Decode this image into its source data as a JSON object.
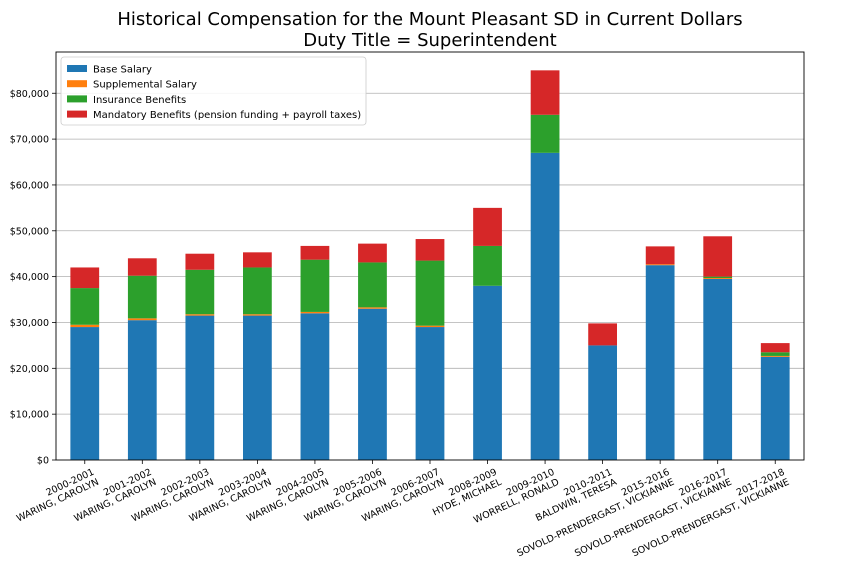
{
  "chart_data": {
    "type": "bar",
    "stacked": true,
    "title": "Historical Compensation for the Mount Pleasant SD in Current Dollars",
    "subtitle": "Duty Title = Superintendent",
    "xlabel": "",
    "ylabel": "",
    "ylim": [
      0,
      89000
    ],
    "yticks": [
      0,
      10000,
      20000,
      30000,
      40000,
      50000,
      60000,
      70000,
      80000
    ],
    "ytick_labels": [
      "$0",
      "$10,000",
      "$20,000",
      "$30,000",
      "$40,000",
      "$50,000",
      "$60,000",
      "$70,000",
      "$80,000"
    ],
    "grid": "horizontal",
    "legend_position": "top-left",
    "categories": [
      [
        "2000-2001",
        "WARING, CAROLYN"
      ],
      [
        "2001-2002",
        "WARING, CAROLYN"
      ],
      [
        "2002-2003",
        "WARING, CAROLYN"
      ],
      [
        "2003-2004",
        "WARING, CAROLYN"
      ],
      [
        "2004-2005",
        "WARING, CAROLYN"
      ],
      [
        "2005-2006",
        "WARING, CAROLYN"
      ],
      [
        "2006-2007",
        "WARING, CAROLYN"
      ],
      [
        "2008-2009",
        "HYDE, MICHAEL"
      ],
      [
        "2009-2010",
        "WORRELL, RONALD"
      ],
      [
        "2010-2011",
        "BALDWIN, TERESA"
      ],
      [
        "2015-2016",
        "SOVOLD-PRENDERGAST, VICKIANNE"
      ],
      [
        "2016-2017",
        "SOVOLD-PRENDERGAST, VICKIANNE"
      ],
      [
        "2017-2018",
        "SOVOLD-PRENDERGAST, VICKIANNE"
      ]
    ],
    "series": [
      {
        "name": "Base Salary",
        "color": "#1f77b4",
        "values": [
          29000,
          30500,
          31500,
          31500,
          32000,
          33000,
          29000,
          38000,
          67000,
          25000,
          42500,
          39500,
          22500
        ]
      },
      {
        "name": "Supplemental Salary",
        "color": "#ff7f0e",
        "values": [
          500,
          400,
          300,
          300,
          300,
          300,
          300,
          0,
          0,
          0,
          200,
          200,
          200
        ]
      },
      {
        "name": "Insurance Benefits",
        "color": "#2ca02c",
        "values": [
          8000,
          9300,
          9700,
          10200,
          11400,
          9800,
          14200,
          8700,
          8300,
          0,
          0,
          300,
          800
        ]
      },
      {
        "name": "Mandatory Benefits (pension funding + payroll taxes)",
        "color": "#d62728",
        "values": [
          4500,
          3800,
          3500,
          3300,
          3000,
          4100,
          4700,
          8300,
          9700,
          4800,
          3900,
          8800,
          2000
        ]
      }
    ]
  }
}
